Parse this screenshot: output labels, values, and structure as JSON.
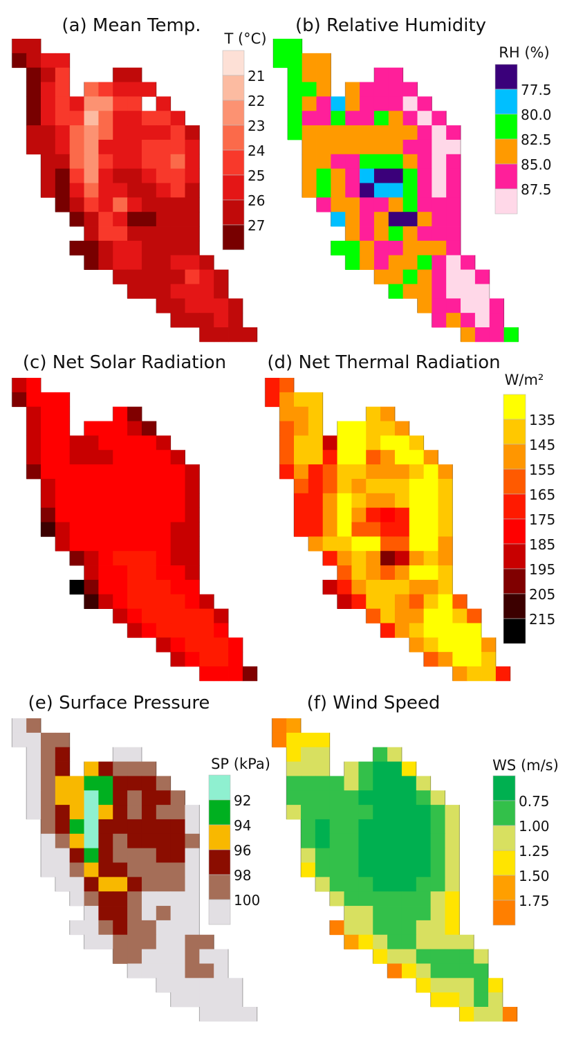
{
  "chart_data": [
    {
      "type": "heatmap",
      "title": "(a) Mean Temp.",
      "legend_title": "T (°C)",
      "legend_labels": [
        "21",
        "22",
        "23",
        "24",
        "25",
        "26",
        "27"
      ],
      "colors": [
        "#fde0d6",
        "#fcbba1",
        "#fc9272",
        "#fb6a4a",
        "#f8392b",
        "#e41616",
        "#c00a0a",
        "#780000"
      ],
      "grid": [
        "66...............",
        "7655.............",
        ".764...66........",
        ".754.34555.......",
        ".75452244 5......",
        ".75441355445.....",
        ".665323555546....",
        ".665325554445....",
        "..66324554435....",
        "..67425665445....",
        "..67535566546....",
        "...7645356666....",
        "....764577666....",
        ".....64466666....",
        "....776556666....",
        ".....765566556...",
        ".......66666456..",
        "........6665556..",
        "..........665556.",
        "...........66656.",
        ".............6666"
      ]
    },
    {
      "type": "heatmap",
      "title": "(b) Relative Humidity",
      "legend_title": "RH (%)",
      "legend_labels": [
        "77.5",
        "80.0",
        "82.5",
        "85.0",
        "87.5"
      ],
      "colors": [
        "#3a007a",
        "#00bfff",
        "#00ff00",
        "#ff9a00",
        "#ff1f9a",
        "#ffd8e8"
      ],
      "grid": [
        "22...............",
        "2233.............",
        ".233...44........",
        ".223.34444.......",
        ".2341344454......",
        ".24424423454.....",
        ".233333333454....",
        "..33333334455....",
        "..33442223454....",
        "..32341002454....",
        "..32340112454....",
        "...4334432444....",
        "....134300344....",
        ".....34323444....",
        "....223443334....",
        ".....234332454...",
        ".......33234554..",
        "........2334555..",
        "..........344554.",
        "...........43454.",
        ".............3442"
      ]
    },
    {
      "type": "heatmap",
      "title": "(c) Net Solar Radiation",
      "legend_title": "",
      "legend_labels": [],
      "colors": [
        "#ffff00",
        "#ffc800",
        "#ff9600",
        "#ff5a00",
        "#ff1a00",
        "#ff0000",
        "#c80000",
        "#800000",
        "#3c0000",
        "#000000"
      ],
      "grid": [
        "65...............",
        "7555.............",
        ".655...57........",
        ".655.55567.......",
        ".6556655556......",
        ".65566655556.....",
        ".755555555556....",
        "..65555555556....",
        "..65555555556....",
        "..75555555556....",
        "..86555555566....",
        "...6555555566....",
        "....765444566....",
        ".....65544556....",
        "....975544455....",
        ".....865444456...",
        ".......65444446..",
        "........6544445..",
        "..........654445.",
        "...........65445.",
        ".............5557"
      ]
    },
    {
      "type": "heatmap",
      "title": "(d) Net Thermal Radiation",
      "legend_title": "W/m²",
      "legend_labels": [
        "135",
        "145",
        "155",
        "165",
        "175",
        "185",
        "195",
        "205",
        "215"
      ],
      "colors": [
        "#ffff00",
        "#ffc800",
        "#ff9600",
        "#ff5a00",
        "#ff1a00",
        "#ff0000",
        "#c80000",
        "#800000",
        "#3c0000",
        "#000000"
      ],
      "grid": [
        "43...............",
        "4211.............",
        ".221...12........",
        ".321.00112.......",
        ".3116001001......",
        ".31140032002.....",
        ".424311222102....",
        "..34312111001....",
        "..44201221001....",
        "..44202454001....",
        "..44203344001....",
        "...2110033002....",
        "....421276212....",
        ".....31232001....",
        "....642111221....",
        ".....641123103...",
        ".......31220013..",
        "........4210000..",
        "..........210002.",
        "...........32001.",
        ".............2114"
      ]
    },
    {
      "type": "heatmap",
      "title": "(e) Surface Pressure",
      "legend_title": "SP (kPa)",
      "legend_labels": [
        "92",
        "94",
        "96",
        "98",
        "100"
      ],
      "colors": [
        "#8ff0d0",
        "#00b020",
        "#f8b800",
        "#8b0d00",
        "#a56e58",
        "#e2dfe3"
      ],
      "grid": [
        "54...............",
        "5544.............",
        ".543...55........",
        ".543.23444.......",
        ".5422113334......",
        ".54220134334.....",
        ".543202343445....",
        "..43103333335....",
        "..54203433334....",
        "..55313444335....",
        "..55423344445....",
        "...5532234445....",
        "....543345555....",
        ".....53345455....",
        "....554344555....",
        ".....554445544...",
        ".......44555455..",
        "........5555445..",
        "..........555555.",
        "...........55555.",
        ".............5555"
      ]
    },
    {
      "type": "heatmap",
      "title": "(f) Wind Speed",
      "legend_title": "WS (m/s)",
      "legend_labels": [
        "0.75",
        "1.00",
        "1.25",
        "1.50",
        "1.75"
      ],
      "colors": [
        "#00b050",
        "#33c04a",
        "#d8e060",
        "#ffe400",
        "#ff9f00",
        "#ff7f00"
      ],
      "grid": [
        "54...............",
        "5333.............",
        ".322...12........",
        ".222.21003.......",
        ".1111210002......",
        ".11111000012.....",
        ".211111000012....",
        "..10110000012....",
        "..10110000012....",
        "..21110000012....",
        "..31110000012....",
        "...2111000112....",
        "....211111123....",
        ".....22111123....",
        "....522111223....",
        ".....432112222...",
        ".......32211112..",
        "........5321111..",
        "..........322213.",
        "...........33212.",
        ".............3225"
      ]
    }
  ]
}
